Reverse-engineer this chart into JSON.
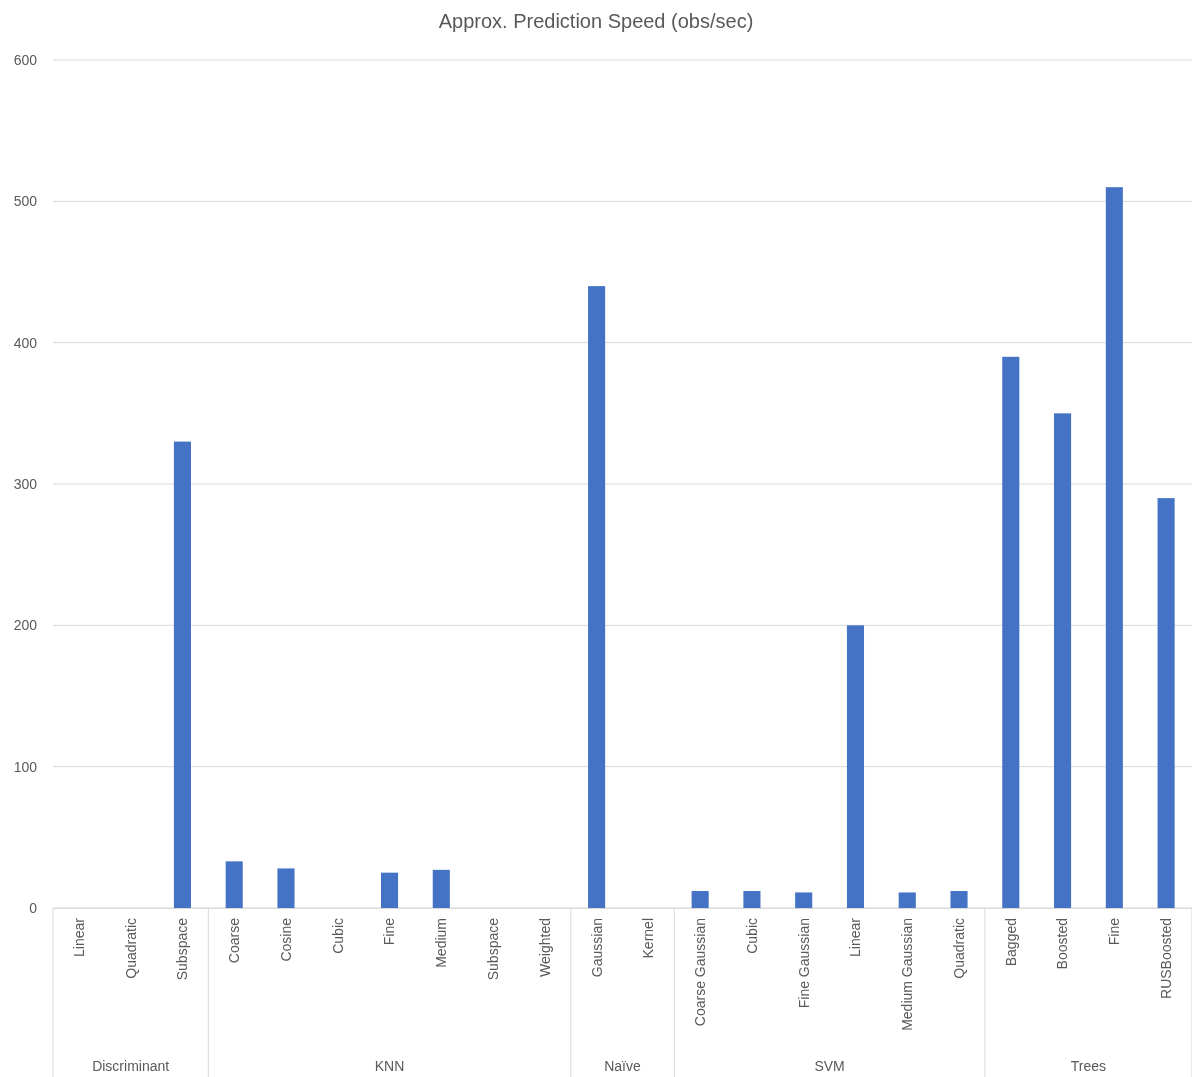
{
  "chart_data": {
    "type": "bar",
    "title": "Approx. Prediction Speed (obs/sec)",
    "categories": [
      "Linear",
      "Quadratic",
      "Subspace",
      "Coarse",
      "Cosine",
      "Cubic",
      "Fine",
      "Medium",
      "Subspace",
      "Weighted",
      "Gaussian",
      "Kernel",
      "Coarse Gaussian",
      "Cubic",
      "Fine Gaussian",
      "Linear",
      "Medium Gaussian",
      "Quadratic",
      "Bagged",
      "Boosted",
      "Fine",
      "RUSBoosted"
    ],
    "values": [
      0,
      0,
      330,
      33,
      28,
      0,
      25,
      27,
      0,
      0,
      440,
      0,
      12,
      12,
      11,
      200,
      11,
      12,
      390,
      350,
      510,
      290
    ],
    "color": "#4472c4",
    "ylim": [
      0,
      600
    ],
    "yticks": [
      0,
      100,
      200,
      300,
      400,
      500,
      600
    ],
    "grid": "y",
    "annotations": [
      "Discriminant",
      "KNN",
      "Naïve",
      "SVM",
      "Trees"
    ]
  }
}
